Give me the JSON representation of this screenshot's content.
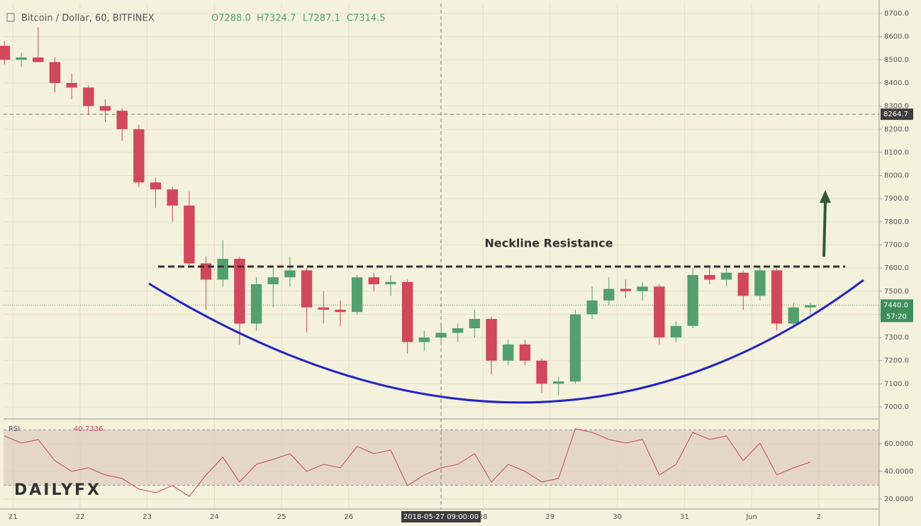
{
  "chart_data": [
    {
      "type": "candlestick",
      "title": "Bitcoin / Dollar, 60, BITFINEX",
      "ohlc_readout": [
        "O7288.0",
        "H7324.7",
        "L7287.1",
        "C7314.5"
      ],
      "annotation": "Neckline Resistance",
      "watermark": "DAILYFX",
      "up_color": "#53a06e",
      "down_color": "#d0485a",
      "x": [
        20.875,
        21.125,
        21.375,
        21.625,
        21.875,
        22.125,
        22.375,
        22.625,
        22.875,
        23.125,
        23.375,
        23.625,
        23.875,
        24.125,
        24.375,
        24.625,
        24.875,
        25.125,
        25.375,
        25.625,
        25.875,
        26.125,
        26.375,
        26.625,
        26.875,
        27.125,
        27.375,
        27.625,
        27.875,
        28.125,
        28.375,
        28.625,
        28.875,
        29.125,
        29.375,
        29.625,
        29.875,
        30.125,
        30.375,
        30.625,
        30.875,
        31.125,
        31.375,
        31.625,
        31.875,
        32.125,
        32.375,
        32.625,
        32.875
      ],
      "open": [
        8560,
        8500,
        8510,
        8490,
        8400,
        8380,
        8300,
        8280,
        8200,
        7970,
        7940,
        7870,
        7620,
        7550,
        7640,
        7360,
        7530,
        7560,
        7590,
        7430,
        7420,
        7410,
        7560,
        7530,
        7540,
        7280,
        7300,
        7320,
        7340,
        7380,
        7200,
        7270,
        7200,
        7100,
        7110,
        7400,
        7460,
        7510,
        7500,
        7520,
        7300,
        7350,
        7570,
        7550,
        7580,
        7480,
        7590,
        7360,
        7430
      ],
      "high": [
        8580,
        8530,
        8640,
        8510,
        8440,
        8390,
        8330,
        8290,
        8220,
        7990,
        7950,
        7930,
        7650,
        7720,
        7650,
        7560,
        7600,
        7650,
        7600,
        7500,
        7460,
        7570,
        7580,
        7570,
        7550,
        7330,
        7360,
        7360,
        7420,
        7390,
        7290,
        7290,
        7210,
        7130,
        7420,
        7520,
        7560,
        7550,
        7540,
        7530,
        7370,
        7600,
        7600,
        7600,
        7590,
        7610,
        7600,
        7450,
        7450
      ],
      "low": [
        8480,
        8470,
        8490,
        8360,
        8330,
        8260,
        8230,
        8150,
        7950,
        7860,
        7800,
        7600,
        7420,
        7520,
        7270,
        7330,
        7430,
        7520,
        7320,
        7360,
        7350,
        7400,
        7500,
        7480,
        7230,
        7240,
        7270,
        7280,
        7300,
        7140,
        7180,
        7180,
        7060,
        7050,
        7100,
        7380,
        7440,
        7470,
        7460,
        7270,
        7280,
        7340,
        7530,
        7520,
        7420,
        7460,
        7330,
        7340,
        7400
      ],
      "close": [
        8500,
        8510,
        8490,
        8400,
        8380,
        8300,
        8280,
        8200,
        7970,
        7940,
        7870,
        7620,
        7550,
        7640,
        7360,
        7530,
        7560,
        7590,
        7430,
        7420,
        7410,
        7560,
        7530,
        7540,
        7280,
        7300,
        7320,
        7340,
        7380,
        7200,
        7270,
        7200,
        7100,
        7110,
        7400,
        7460,
        7510,
        7500,
        7520,
        7300,
        7350,
        7570,
        7550,
        7580,
        7480,
        7590,
        7360,
        7430,
        7440
      ],
      "xlim": [
        20.86,
        33.9
      ],
      "ylim": [
        6951,
        8743
      ],
      "yticks": [
        {
          "value": 7000,
          "label": "7000.0"
        },
        {
          "value": 7100,
          "label": "7100.0"
        },
        {
          "value": 7200,
          "label": "7200.0"
        },
        {
          "value": 7300,
          "label": "7300.0"
        },
        {
          "value": 7400,
          "label": "7400.0"
        },
        {
          "value": 7500,
          "label": "7500.0"
        },
        {
          "value": 7600,
          "label": "7600.0"
        },
        {
          "value": 7700,
          "label": "7700.0"
        },
        {
          "value": 7800,
          "label": "7800.0"
        },
        {
          "value": 7900,
          "label": "7900.0"
        },
        {
          "value": 8000,
          "label": "8000.0"
        },
        {
          "value": 8100,
          "label": "8100.0"
        },
        {
          "value": 8200,
          "label": "8200.0"
        },
        {
          "value": 8300,
          "label": "8300.0"
        },
        {
          "value": 8400,
          "label": "8400.0"
        },
        {
          "value": 8500,
          "label": "8500.0"
        },
        {
          "value": 8600,
          "label": "8600.0"
        },
        {
          "value": 8700,
          "label": "8700.0"
        }
      ],
      "xticks": [
        21,
        22,
        23,
        24,
        25,
        26,
        28,
        29,
        30,
        31,
        {
          "value": 32,
          "label": "Jun"
        },
        {
          "value": 33,
          "label": "2"
        }
      ],
      "crosshair_x": {
        "value": 27.375,
        "label": "2018-05-27 09:00:00"
      },
      "level_line": 8264.7,
      "last_price": {
        "value": 7440,
        "label": "7440.0"
      },
      "countdown": "57:20"
    },
    {
      "type": "line",
      "series": [
        {
          "name": "RSI",
          "color": "#c2485a",
          "values": [
            65.6,
            60.5,
            63,
            47.7,
            40,
            42.6,
            37.4,
            34.9,
            27.2,
            24.6,
            29.7,
            22,
            37.4,
            50.3,
            32.3,
            45.1,
            48.7,
            52.8,
            40,
            45.1,
            42.6,
            58,
            52.8,
            55.4,
            29.7,
            37.4,
            42.6,
            45.1,
            52.8,
            32.3,
            45.1,
            40,
            32.3,
            34.9,
            70.8,
            68.2,
            63.1,
            60.5,
            63.1,
            37.4,
            45.1,
            68.2,
            63.1,
            65.6,
            47.7,
            60.5,
            37.4,
            42.6,
            46.7
          ]
        }
      ],
      "readout": "40.7336",
      "x": [
        20.875,
        21.125,
        21.375,
        21.625,
        21.875,
        22.125,
        22.375,
        22.625,
        22.875,
        23.125,
        23.375,
        23.625,
        23.875,
        24.125,
        24.375,
        24.625,
        24.875,
        25.125,
        25.375,
        25.625,
        25.875,
        26.125,
        26.375,
        26.625,
        26.875,
        27.125,
        27.375,
        27.625,
        27.875,
        28.125,
        28.375,
        28.625,
        28.875,
        29.125,
        29.375,
        29.625,
        29.875,
        30.125,
        30.375,
        30.625,
        30.875,
        31.125,
        31.375,
        31.625,
        31.875,
        32.125,
        32.375,
        32.625,
        32.875
      ],
      "xlim": [
        20.86,
        33.9
      ],
      "ylim": [
        12.8,
        77.4
      ],
      "yticks": [
        {
          "value": 20,
          "label": "20.0000"
        },
        {
          "value": 40,
          "label": "40.0000"
        },
        {
          "value": 60,
          "label": "60.0000"
        }
      ],
      "bands": [
        30,
        70
      ]
    }
  ]
}
